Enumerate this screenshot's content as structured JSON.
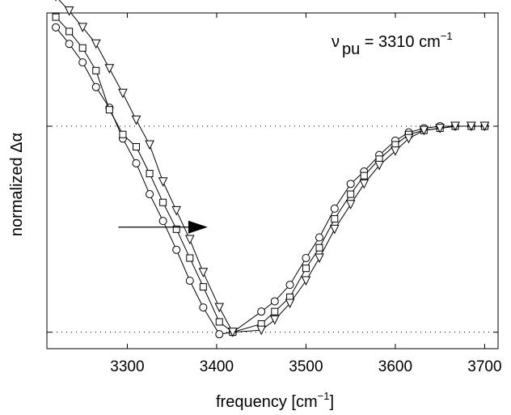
{
  "chart_data": {
    "type": "line",
    "title": "",
    "xlabel": "frequency [cm",
    "xlabel_sup": "−1",
    "xlabel_suffix": "]",
    "ylabel": "normalized Δα",
    "xlim": [
      3210,
      3715
    ],
    "ylim": [
      -1.08,
      0.55
    ],
    "x_ticks": [
      3300,
      3400,
      3500,
      3600,
      3700
    ],
    "x_tick_labels": [
      "3300",
      "3400",
      "3500",
      "3600",
      "3700"
    ],
    "y_ref_lines": [
      0,
      -1
    ],
    "grid": false,
    "legend": "none",
    "annotation": {
      "text_prefix": "ν",
      "text_sub": "pu",
      "text_main": " = 3310 cm",
      "text_sup": "−1",
      "position": "top-right"
    },
    "arrow": {
      "from_x": 3290,
      "to_x": 3390,
      "y": -0.49,
      "direction": "right"
    },
    "series": [
      {
        "marker": "circle",
        "x": [
          3220,
          3235,
          3250,
          3265,
          3280,
          3295,
          3310,
          3325,
          3340,
          3355,
          3370,
          3385,
          3403,
          3418,
          3450,
          3465,
          3482,
          3500,
          3515,
          3532,
          3550,
          3565,
          3582,
          3600,
          3615,
          3632,
          3650,
          3667,
          3685,
          3700
        ],
        "y": [
          0.48,
          0.4,
          0.31,
          0.19,
          0.09,
          -0.06,
          -0.18,
          -0.33,
          -0.46,
          -0.6,
          -0.75,
          -0.88,
          -1.01,
          -1.0,
          -0.9,
          -0.85,
          -0.77,
          -0.64,
          -0.54,
          -0.4,
          -0.28,
          -0.22,
          -0.14,
          -0.07,
          -0.03,
          -0.01,
          0.0,
          0.0,
          0.0,
          0.0
        ]
      },
      {
        "marker": "square",
        "x": [
          3220,
          3235,
          3250,
          3265,
          3280,
          3295,
          3310,
          3325,
          3340,
          3355,
          3370,
          3385,
          3403,
          3418,
          3450,
          3465,
          3482,
          3500,
          3515,
          3532,
          3550,
          3565,
          3582,
          3600,
          3615,
          3632,
          3650,
          3667,
          3685,
          3700
        ],
        "y": [
          0.53,
          0.46,
          0.38,
          0.27,
          0.08,
          -0.04,
          -0.1,
          -0.23,
          -0.37,
          -0.5,
          -0.64,
          -0.78,
          -0.95,
          -1.0,
          -0.96,
          -0.9,
          -0.83,
          -0.69,
          -0.59,
          -0.45,
          -0.33,
          -0.24,
          -0.16,
          -0.09,
          -0.04,
          -0.02,
          -0.01,
          0.0,
          0.0,
          0.0
        ]
      },
      {
        "marker": "triangle-down",
        "x": [
          3220,
          3235,
          3250,
          3265,
          3280,
          3295,
          3310,
          3325,
          3340,
          3355,
          3370,
          3385,
          3403,
          3418,
          3450,
          3465,
          3482,
          3500,
          3515,
          3532,
          3550,
          3565,
          3582,
          3600,
          3615,
          3632,
          3650,
          3667,
          3685,
          3700
        ],
        "y": [
          0.63,
          0.56,
          0.48,
          0.4,
          0.28,
          0.16,
          0.03,
          -0.09,
          -0.27,
          -0.41,
          -0.55,
          -0.71,
          -0.88,
          -1.0,
          -0.99,
          -0.94,
          -0.86,
          -0.75,
          -0.64,
          -0.5,
          -0.38,
          -0.28,
          -0.19,
          -0.12,
          -0.06,
          -0.02,
          -0.01,
          0.0,
          0.0,
          0.0
        ]
      }
    ]
  }
}
